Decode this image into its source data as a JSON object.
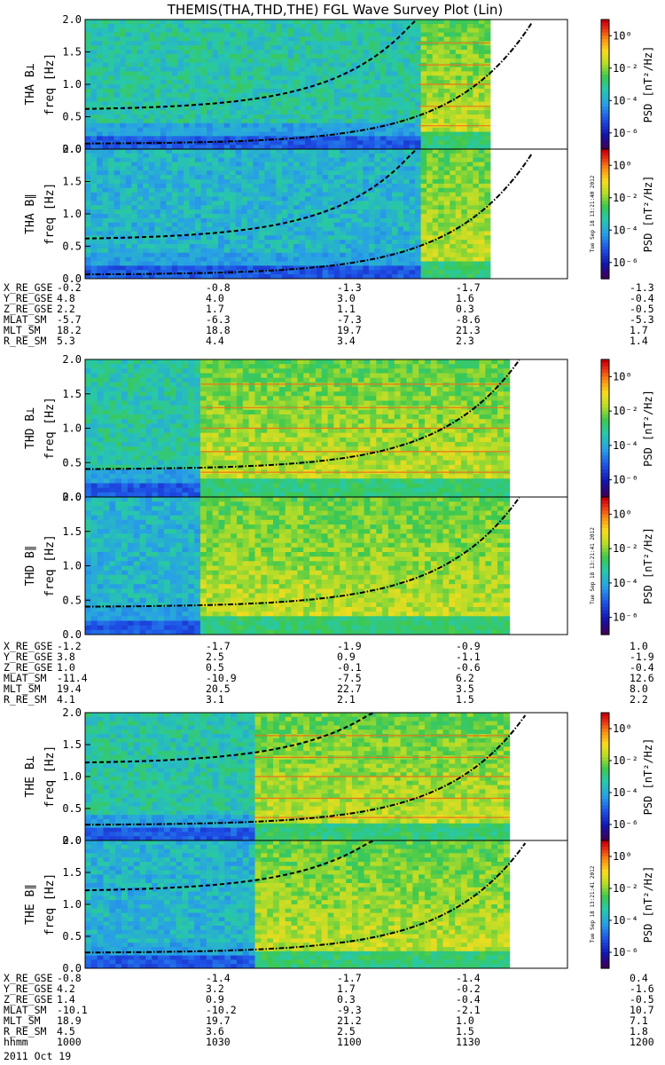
{
  "chart_data": {
    "type": "heatmap",
    "title": "THEMIS(THA,THD,THE) FGL Wave Survey Plot (Lin)",
    "colorbar": {
      "label": "PSD [nT²/Hz]",
      "ticks": [
        "10⁰",
        "10⁻²",
        "10⁻⁴",
        "10⁻⁶"
      ],
      "colormap": "rainbow",
      "range_log10": [
        -7,
        1
      ]
    },
    "yaxis": {
      "label": "freq [Hz]",
      "range": [
        0,
        2.0
      ],
      "ticks": [
        "0.0",
        "0.5",
        "1.0",
        "1.5",
        "2.0"
      ]
    },
    "x_range_hhmm": [
      "1000",
      "1200"
    ],
    "probes": [
      {
        "name": "THA",
        "panels": [
          {
            "component": "THA B⊥",
            "ylabel": "THA B⊥",
            "cutoff_frac": 0.69,
            "data_end_frac": 0.84,
            "curve_offsets": [
              0.04,
              0.3
            ]
          },
          {
            "component": "THA B∥",
            "ylabel": "THA B∥",
            "cutoff_frac": 0.69,
            "data_end_frac": 0.84,
            "curve_offsets": [
              0.03,
              0.3
            ]
          }
        ],
        "stamp": "Tue Sep 18 13:21:40 2012",
        "ephemeris": [
          {
            "label": "X_RE_GSE",
            "values": [
              "-0.2",
              "-0.8",
              "-1.3",
              "-1.7",
              "-1.3"
            ]
          },
          {
            "label": "Y_RE_GSE",
            "values": [
              "4.8",
              "4.0",
              "3.0",
              "1.6",
              "-0.4"
            ]
          },
          {
            "label": "Z_RE_GSE",
            "values": [
              "2.2",
              "1.7",
              "1.1",
              "0.3",
              "-0.5"
            ]
          },
          {
            "label": "MLAT_SM",
            "values": [
              "-5.7",
              "-6.3",
              "-7.3",
              "-8.6",
              "-5.3"
            ]
          },
          {
            "label": "MLT_SM",
            "values": [
              "18.2",
              "18.8",
              "19.7",
              "21.3",
              "1.7"
            ]
          },
          {
            "label": "R_RE_SM",
            "values": [
              "5.3",
              "4.4",
              "3.4",
              "2.3",
              "1.4"
            ]
          }
        ]
      },
      {
        "name": "THD",
        "panels": [
          {
            "component": "THD B⊥",
            "ylabel": "THD B⊥",
            "cutoff_frac": 0.24,
            "data_end_frac": 0.88,
            "curve_offsets": [
              0.2
            ]
          },
          {
            "component": "THD B∥",
            "ylabel": "THD B∥",
            "cutoff_frac": 0.24,
            "data_end_frac": 0.88,
            "curve_offsets": [
              0.2
            ]
          }
        ],
        "stamp": "Tue Sep 18 13:21:41 2012",
        "ephemeris": [
          {
            "label": "X_RE_GSE",
            "values": [
              "-1.2",
              "-1.7",
              "-1.9",
              "-0.9",
              "1.0"
            ]
          },
          {
            "label": "Y_RE_GSE",
            "values": [
              "3.8",
              "2.5",
              "0.9",
              "-1.1",
              "-1.9"
            ]
          },
          {
            "label": "Z_RE_GSE",
            "values": [
              "1.0",
              "0.5",
              "-0.1",
              "-0.6",
              "-0.4"
            ]
          },
          {
            "label": "MLAT_SM",
            "values": [
              "-11.4",
              "-10.9",
              "-7.5",
              "6.2",
              "12.6"
            ]
          },
          {
            "label": "MLT_SM",
            "values": [
              "19.4",
              "20.5",
              "22.7",
              "3.5",
              "8.0"
            ]
          },
          {
            "label": "R_RE_SM",
            "values": [
              "4.1",
              "3.1",
              "2.1",
              "1.5",
              "2.2"
            ]
          }
        ]
      },
      {
        "name": "THE",
        "panels": [
          {
            "component": "THE B⊥",
            "ylabel": "THE B⊥",
            "cutoff_frac": 0.35,
            "data_end_frac": 0.88,
            "curve_offsets": [
              0.12,
              0.6
            ]
          },
          {
            "component": "THE B∥",
            "ylabel": "THE B∥",
            "cutoff_frac": 0.35,
            "data_end_frac": 0.88,
            "curve_offsets": [
              0.12,
              0.6
            ]
          }
        ],
        "stamp": "Tue Sep 18 13:21:41 2012",
        "ephemeris": [
          {
            "label": "X_RE_GSE",
            "values": [
              "-0.8",
              "-1.4",
              "-1.7",
              "-1.4",
              "0.4"
            ]
          },
          {
            "label": "Y_RE_GSE",
            "values": [
              "4.2",
              "3.2",
              "1.7",
              "-0.2",
              "-1.6"
            ]
          },
          {
            "label": "Z_RE_GSE",
            "values": [
              "1.4",
              "0.9",
              "0.3",
              "-0.4",
              "-0.5"
            ]
          },
          {
            "label": "MLAT_SM",
            "values": [
              "-10.1",
              "-10.2",
              "-9.3",
              "-2.1",
              "10.7"
            ]
          },
          {
            "label": "MLT_SM",
            "values": [
              "18.9",
              "19.7",
              "21.2",
              "1.0",
              "7.1"
            ]
          },
          {
            "label": "R_RE_SM",
            "values": [
              "4.5",
              "3.6",
              "2.5",
              "1.5",
              "1.8"
            ]
          },
          {
            "label": "hhmm",
            "values": [
              "1000",
              "1030",
              "1100",
              "1130",
              "1200"
            ]
          }
        ]
      }
    ],
    "date_label": "2011 Oct 19"
  }
}
